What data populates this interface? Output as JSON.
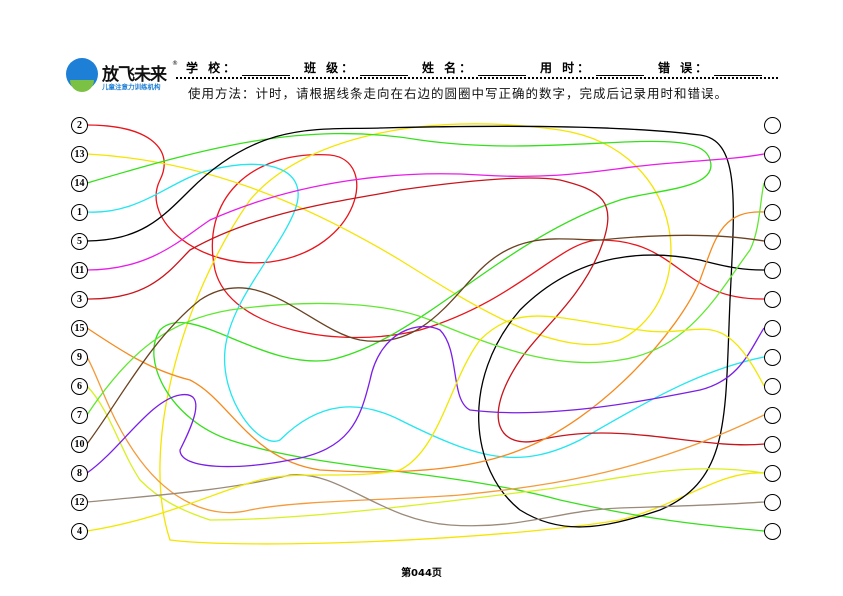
{
  "logo": {
    "title": "放飞未来",
    "registered": "®",
    "subtitle": "儿童注意力训练机构"
  },
  "fields": [
    {
      "label": "学 校："
    },
    {
      "label": "班 级："
    },
    {
      "label": "姓 名："
    },
    {
      "label": "用 时："
    },
    {
      "label": "错 误："
    }
  ],
  "instructions": "使用方法：计时，请根据线条走向在右边的圆圈中写正确的数字，完成后记录用时和错误。",
  "left_numbers": [
    "2",
    "13",
    "14",
    "1",
    "5",
    "11",
    "3",
    "15",
    "9",
    "6",
    "7",
    "10",
    "8",
    "12",
    "4"
  ],
  "right_answers": [
    "",
    "",
    "",
    "",
    "",
    "",
    "",
    "",
    "",
    "",
    "",
    "",
    "",
    "",
    ""
  ],
  "line_colors": [
    "#e8141b",
    "#f5e400",
    "#35e01b",
    "#22e6f0",
    "#000000",
    "#e81ce8",
    "#c8141b",
    "#f58a1e",
    "#f59a3a",
    "#d8f020",
    "#60e830",
    "#6a4222",
    "#7a1ee8",
    "#9a8a7a",
    "#f0e800"
  ],
  "page_label": "第044页"
}
